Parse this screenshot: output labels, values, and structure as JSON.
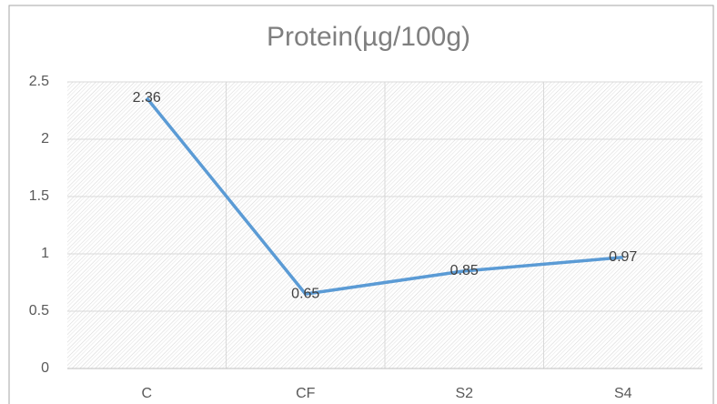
{
  "chart_data": {
    "type": "line",
    "title": "Protein(µg/100g)",
    "categories": [
      "C",
      "CF",
      "S2",
      "S4"
    ],
    "series": [
      {
        "name": "Protein",
        "color": "#5b9bd5",
        "values": [
          2.36,
          0.65,
          0.85,
          0.97
        ]
      }
    ],
    "ylim": [
      0,
      2.5
    ],
    "yticks": [
      0,
      0.5,
      1,
      1.5,
      2,
      2.5
    ],
    "grid": true
  }
}
